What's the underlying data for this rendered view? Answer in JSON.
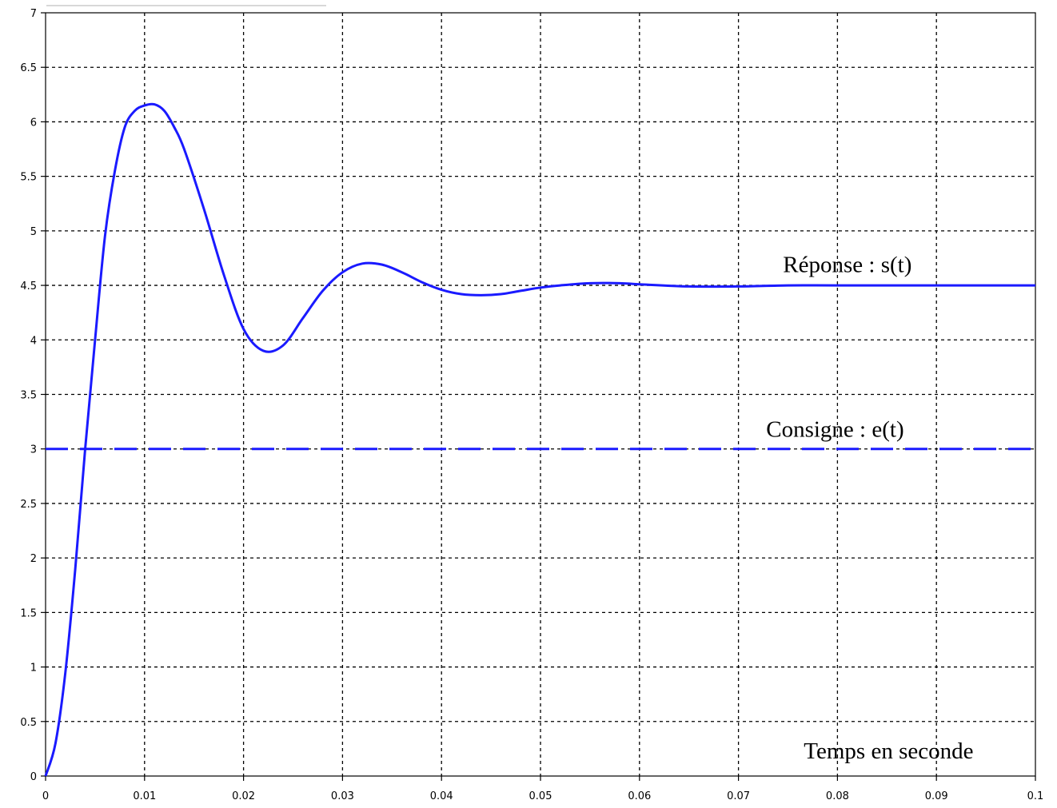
{
  "chart_data": {
    "type": "line",
    "title": "",
    "xlabel": "",
    "ylabel": "",
    "xlim": [
      0,
      0.1
    ],
    "ylim": [
      0,
      7
    ],
    "grid": true,
    "xticks": [
      "0",
      "0.01",
      "0.02",
      "0.03",
      "0.04",
      "0.05",
      "0.06",
      "0.07",
      "0.08",
      "0.09",
      "0.1"
    ],
    "yticks": [
      "0",
      "0.5",
      "1",
      "1.5",
      "2",
      "2.5",
      "3",
      "3.5",
      "4",
      "4.5",
      "5",
      "5.5",
      "6",
      "6.5",
      "7"
    ],
    "series": [
      {
        "name": "Réponse : s(t)",
        "style": "solid",
        "color": "#1a1aff",
        "x": [
          0,
          0.001,
          0.002,
          0.003,
          0.004,
          0.005,
          0.006,
          0.007,
          0.008,
          0.009,
          0.01,
          0.011,
          0.012,
          0.013,
          0.014,
          0.016,
          0.018,
          0.02,
          0.022,
          0.024,
          0.026,
          0.028,
          0.03,
          0.032,
          0.034,
          0.036,
          0.038,
          0.04,
          0.042,
          0.044,
          0.046,
          0.048,
          0.05,
          0.052,
          0.055,
          0.058,
          0.06,
          0.065,
          0.07,
          0.075,
          0.08,
          0.09,
          0.1
        ],
        "y": [
          0,
          0.3,
          0.95,
          1.9,
          3.0,
          4.0,
          4.95,
          5.55,
          5.95,
          6.1,
          6.15,
          6.16,
          6.1,
          5.95,
          5.75,
          5.2,
          4.6,
          4.1,
          3.9,
          3.95,
          4.2,
          4.45,
          4.62,
          4.7,
          4.69,
          4.62,
          4.53,
          4.46,
          4.42,
          4.41,
          4.42,
          4.45,
          4.48,
          4.5,
          4.52,
          4.52,
          4.51,
          4.49,
          4.49,
          4.5,
          4.5,
          4.5,
          4.5
        ]
      },
      {
        "name": "Consigne : e(t)",
        "style": "dashed",
        "color": "#1a1aff",
        "x": [
          0,
          0.1
        ],
        "y": [
          3,
          3
        ]
      }
    ],
    "annotations": [
      {
        "text": "Réponse : s(t)",
        "x": 0.0745,
        "y": 4.62
      },
      {
        "text": "Consigne : e(t)",
        "x": 0.0728,
        "y": 3.11
      },
      {
        "text": "Temps en seconde",
        "x": 0.0766,
        "y": 0.16
      }
    ]
  }
}
